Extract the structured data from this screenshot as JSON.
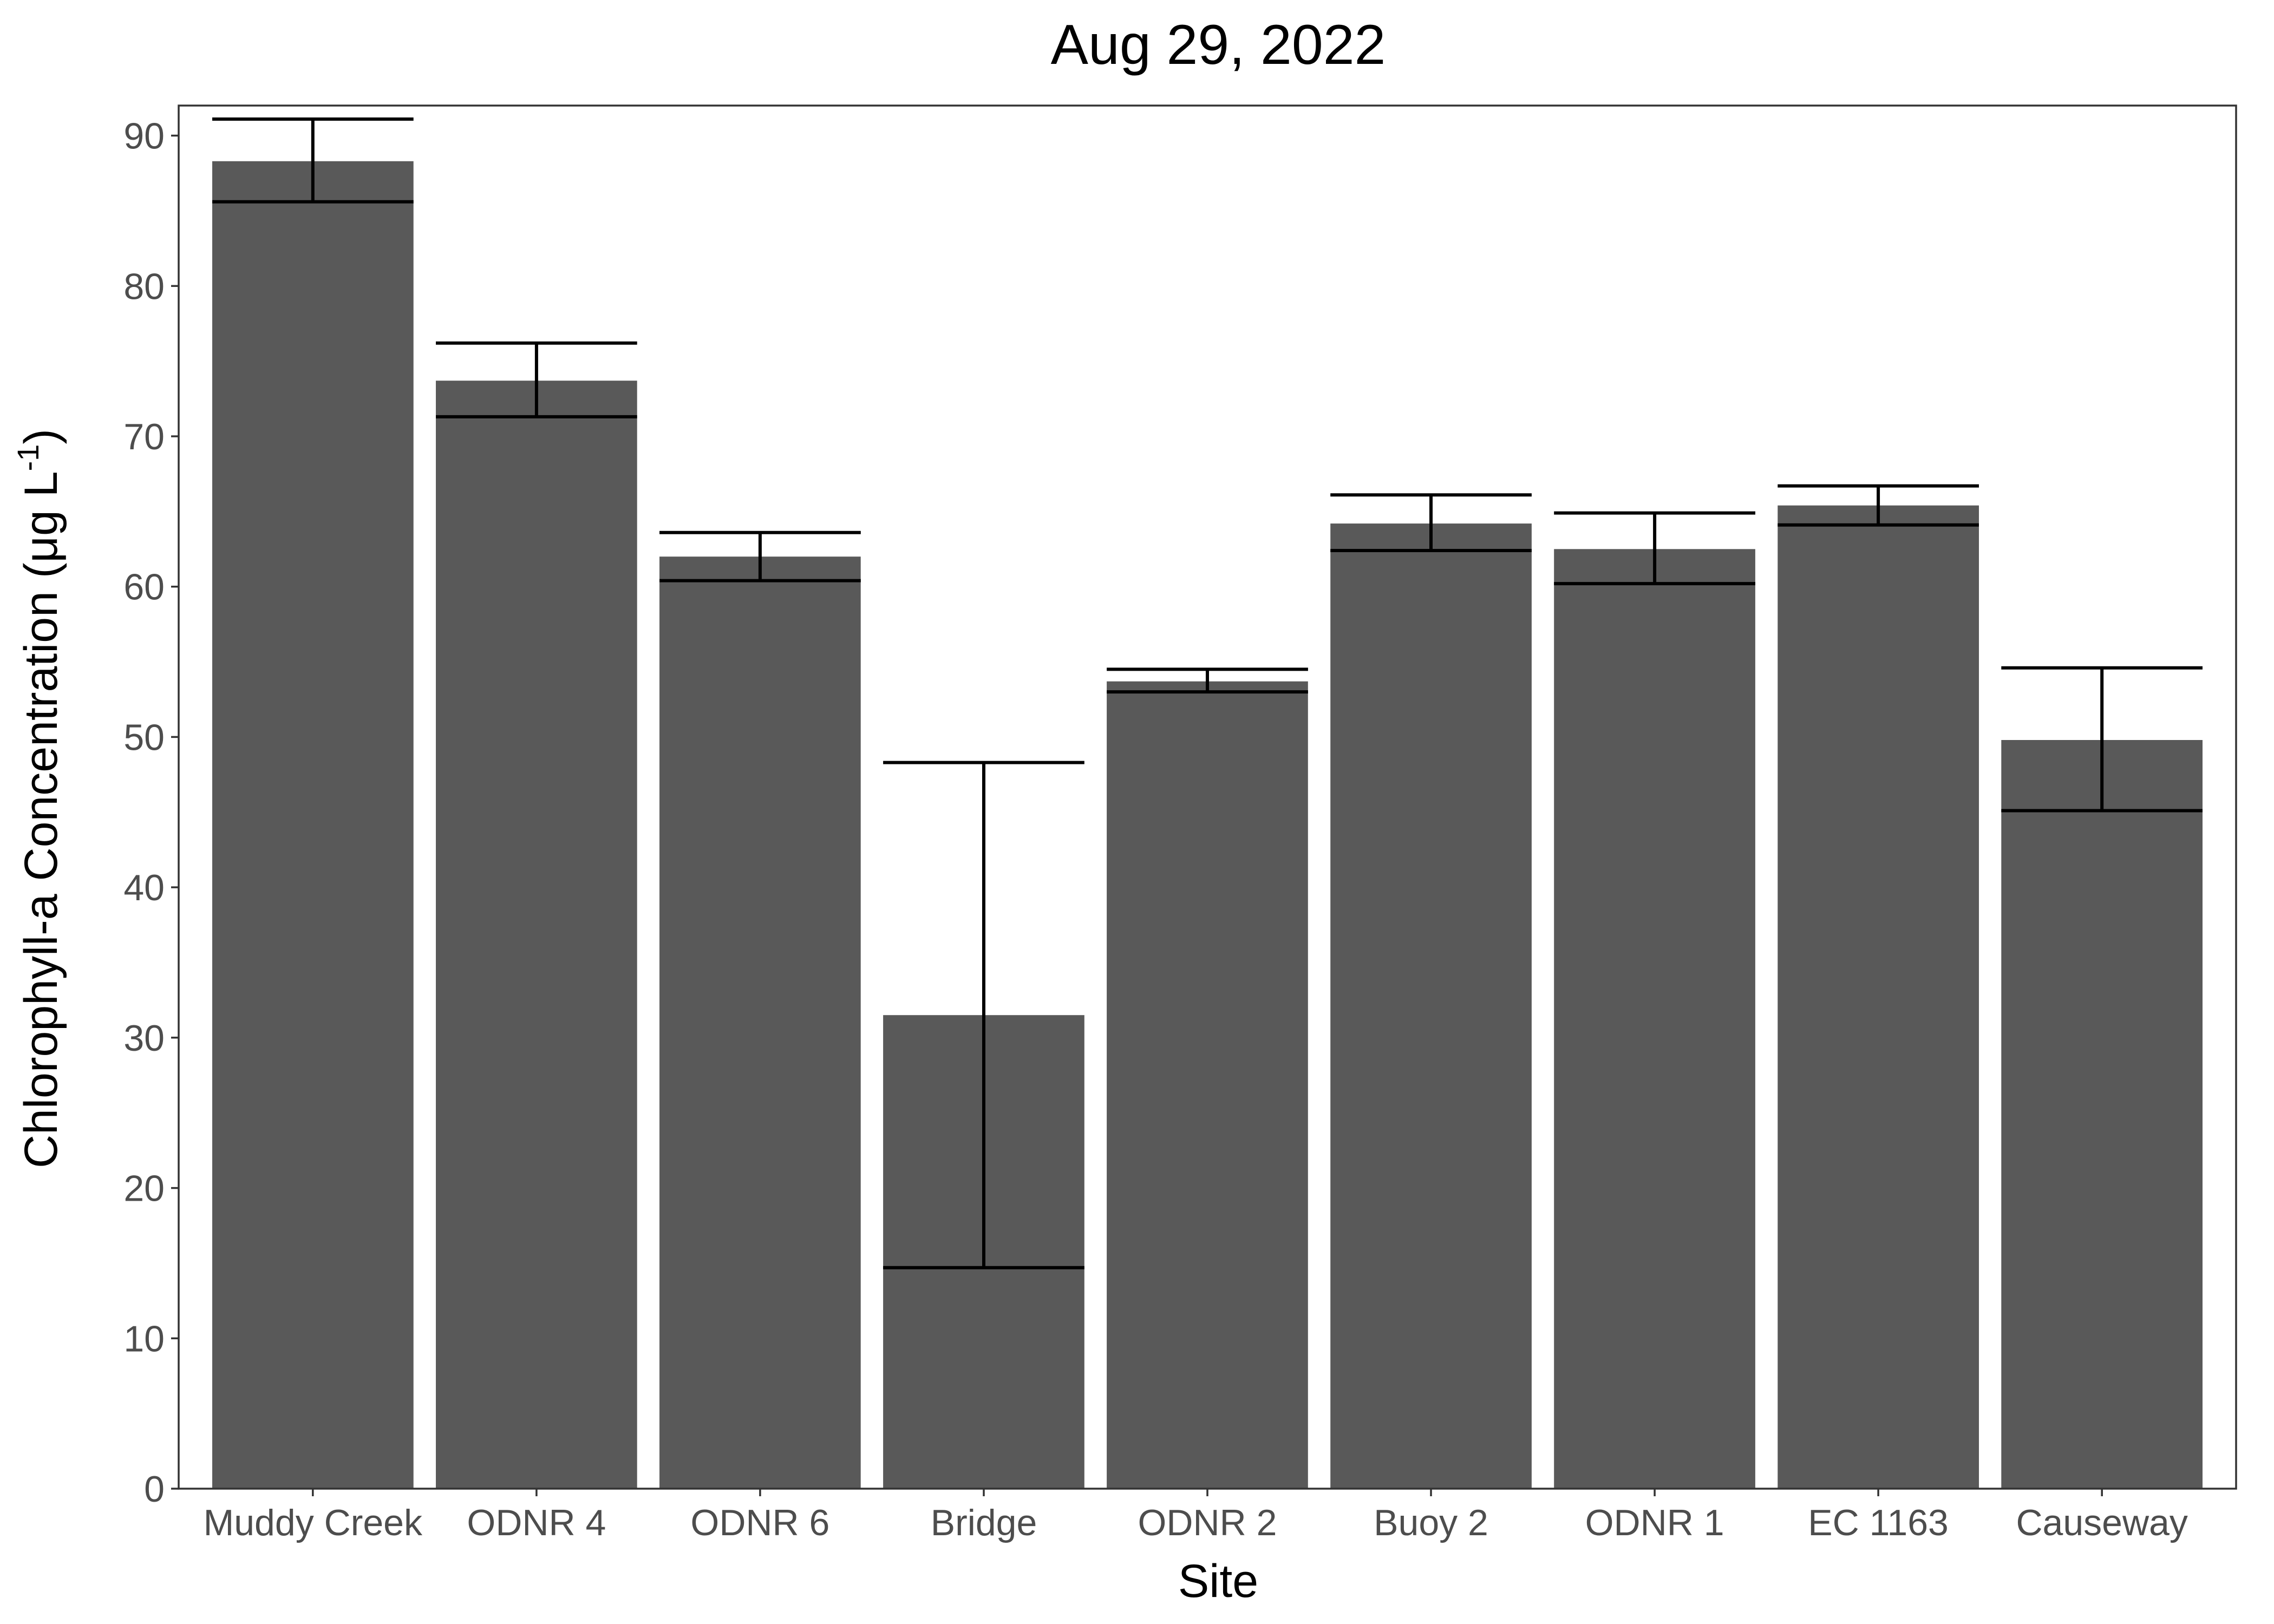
{
  "chart_data": {
    "type": "bar",
    "title": "Aug 29, 2022",
    "xlabel": "Site",
    "ylabel": "Chlorophyll-a Concentration (μg L",
    "ylabel_superscript": "-1",
    "ylabel_close": ")",
    "ylim": [
      0,
      92
    ],
    "yticks": [
      0,
      10,
      20,
      30,
      40,
      50,
      60,
      70,
      80,
      90
    ],
    "grid": false,
    "categories": [
      "Muddy Creek",
      "ODNR 4",
      "ODNR 6",
      "Bridge",
      "ODNR 2",
      "Buoy 2",
      "ODNR 1",
      "EC 1163",
      "Causeway"
    ],
    "values": [
      88.3,
      73.7,
      62.0,
      31.5,
      53.7,
      64.2,
      62.5,
      65.4,
      49.8
    ],
    "error_low": [
      85.6,
      71.3,
      60.4,
      14.7,
      53.0,
      62.4,
      60.2,
      64.1,
      45.1
    ],
    "error_high": [
      91.1,
      76.2,
      63.6,
      48.3,
      54.5,
      66.1,
      64.9,
      66.7,
      54.6
    ],
    "bar_color": "#595959"
  }
}
